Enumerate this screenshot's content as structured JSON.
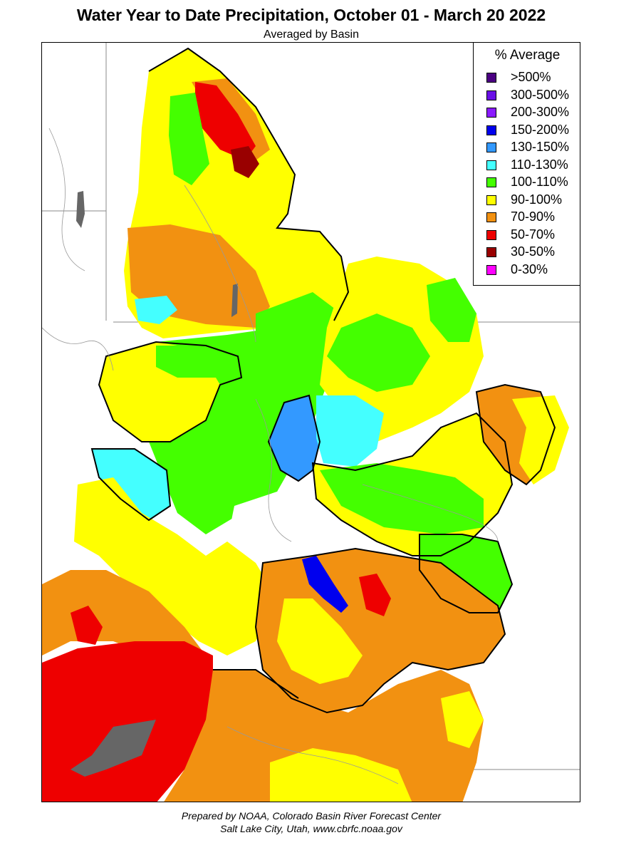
{
  "title": "Water Year to Date Precipitation, October 01  - March 20 2022",
  "subtitle": "Averaged by Basin",
  "legend": {
    "title": "% Average",
    "items": [
      {
        "label": ">500%",
        "color": "#4b0082"
      },
      {
        "label": "300-500%",
        "color": "#6a0fe6"
      },
      {
        "label": "200-300%",
        "color": "#8a1aff"
      },
      {
        "label": "150-200%",
        "color": "#0000ee"
      },
      {
        "label": "130-150%",
        "color": "#3399ff"
      },
      {
        "label": "110-130%",
        "color": "#44ffff"
      },
      {
        "label": "100-110%",
        "color": "#44ff00"
      },
      {
        "label": "90-100%",
        "color": "#ffff00"
      },
      {
        "label": "70-90%",
        "color": "#f29111"
      },
      {
        "label": "50-70%",
        "color": "#ee0000"
      },
      {
        "label": "30-50%",
        "color": "#990000"
      },
      {
        "label": "0-30%",
        "color": "#ff00ff"
      }
    ]
  },
  "footer": {
    "line1": "Prepared by NOAA, Colorado Basin River Forecast Center",
    "line2": "Salt Lake City, Utah, www.cbrfc.noaa.gov"
  }
}
